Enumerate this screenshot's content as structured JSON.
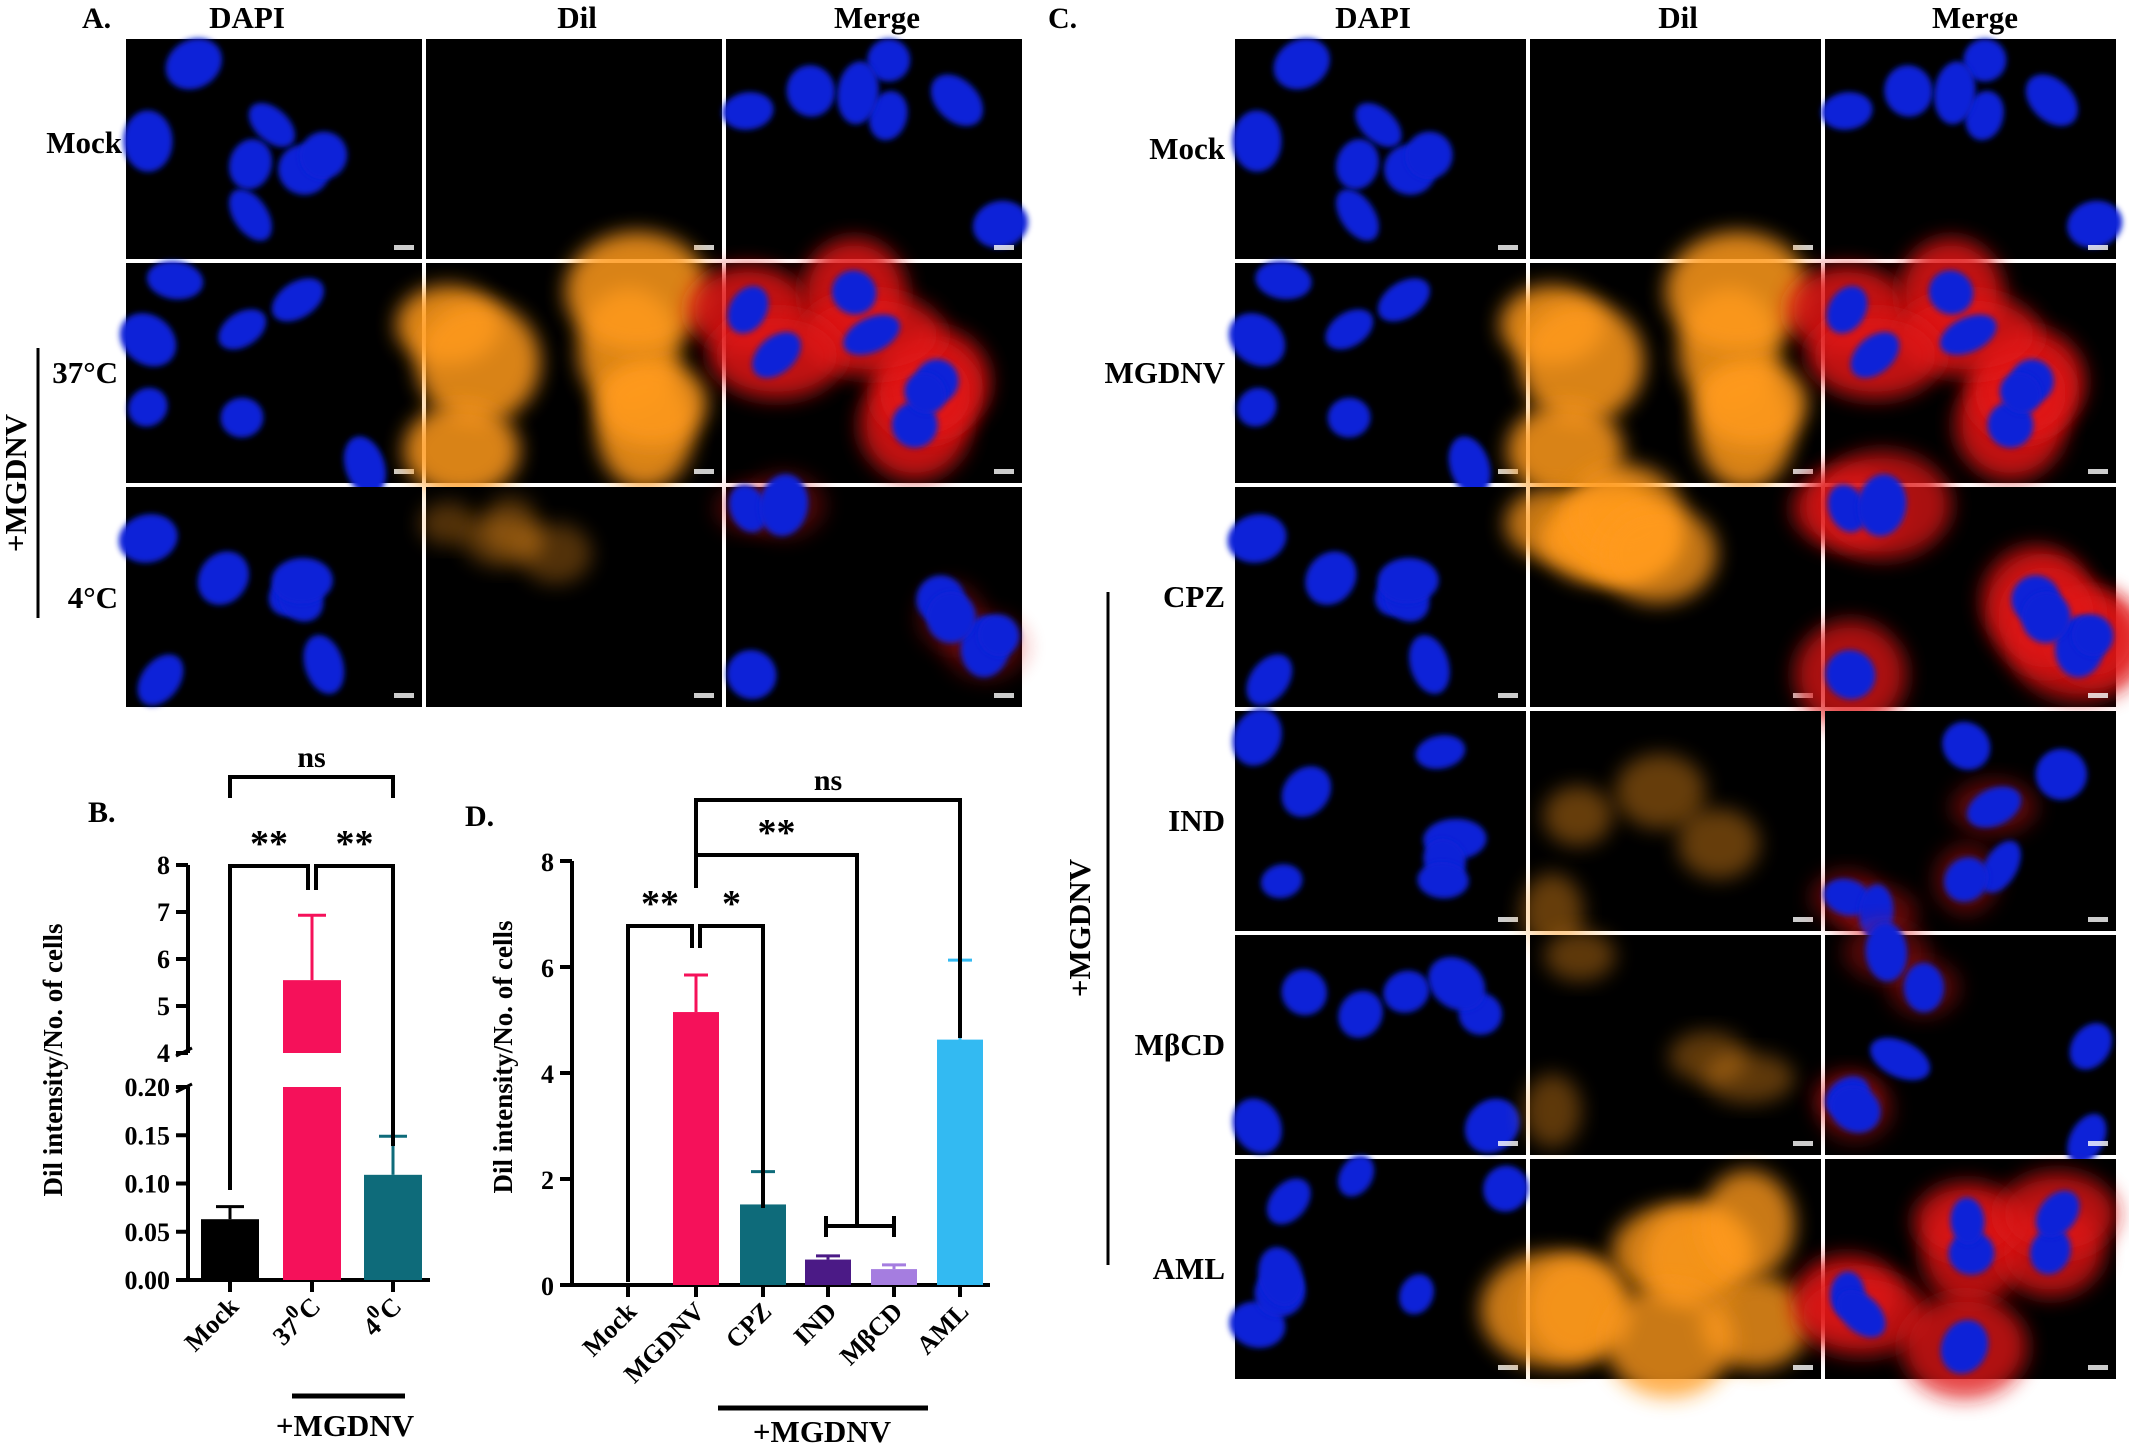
{
  "panel_A": {
    "letter": "A.",
    "columns": [
      "DAPI",
      "Dil",
      "Merge"
    ],
    "rows": [
      "Mock",
      "37°C",
      "4°C"
    ],
    "group_label": "+MGDNV",
    "dil_level": [
      0,
      1.0,
      0.12
    ]
  },
  "panel_C": {
    "letter": "C.",
    "columns": [
      "DAPI",
      "Dil",
      "Merge"
    ],
    "rows": [
      "Mock",
      "MGDNV",
      "CPZ",
      "IND",
      "MβCD",
      "AML"
    ],
    "group_label": "+MGDNV",
    "dil_level": [
      0,
      1.0,
      0.85,
      0.25,
      0.2,
      0.9
    ]
  },
  "colors": {
    "background": "#ffffff",
    "micrograph_bg": "#000000",
    "dapi": "#1020d8",
    "dil": "#ff9a1a",
    "merge": "#e01818",
    "bar_mock": "#000000",
    "bar_magenta": "#f5115a",
    "bar_teal": "#0e6b7a",
    "bar_purple": "#4b1a86",
    "bar_lavender": "#a57de0",
    "bar_cyan": "#33baf2"
  },
  "chart_data": [
    {
      "panel": "B.",
      "type": "bar",
      "categories": [
        "Mock",
        "37",
        "4"
      ],
      "category_superscripts": [
        "",
        "0",
        "0"
      ],
      "category_suffix": [
        "",
        "C",
        "C"
      ],
      "values": [
        0.063,
        5.55,
        0.109
      ],
      "errors": [
        0.013,
        1.38,
        0.04
      ],
      "colors": [
        "#000000",
        "#f5115a",
        "#0e6b7a"
      ],
      "ylabel": "Dil intensity/No. of cells",
      "y_broken": true,
      "y_lower_range": [
        0,
        0.2
      ],
      "y_upper_range": [
        4,
        8
      ],
      "y_lower_ticks": [
        "0.00",
        "0.05",
        "0.10",
        "0.15",
        "0.20"
      ],
      "y_upper_ticks": [
        "4",
        "5",
        "6",
        "7",
        "8"
      ],
      "group_label": "+MGDNV",
      "significance": [
        {
          "from": 0,
          "to": 2,
          "label": "ns"
        },
        {
          "from": 0,
          "to": 1,
          "label": "**"
        },
        {
          "from": 1,
          "to": 2,
          "label": "**"
        }
      ]
    },
    {
      "panel": "D.",
      "type": "bar",
      "categories": [
        "Mock",
        "MGDNV",
        "CPZ",
        "IND",
        "MβCD",
        "AML"
      ],
      "values": [
        0,
        5.15,
        1.52,
        0.48,
        0.3,
        4.63
      ],
      "errors": [
        0,
        0.7,
        0.62,
        0.07,
        0.08,
        1.5
      ],
      "colors": [
        "#000000",
        "#f5115a",
        "#0e6b7a",
        "#4b1a86",
        "#a57de0",
        "#33baf2"
      ],
      "ylabel": "Dil intensity/No. of cells",
      "ylim": [
        0,
        8
      ],
      "y_ticks": [
        "0",
        "2",
        "4",
        "6",
        "8"
      ],
      "group_label": "+MGDNV",
      "significance": [
        {
          "from": 1,
          "to": 5,
          "label": "ns"
        },
        {
          "from": 1,
          "to": 3.5,
          "label": "**"
        },
        {
          "from": 0,
          "to": 1,
          "label": "**"
        },
        {
          "from": 1,
          "to": 2,
          "label": "*"
        }
      ]
    }
  ]
}
